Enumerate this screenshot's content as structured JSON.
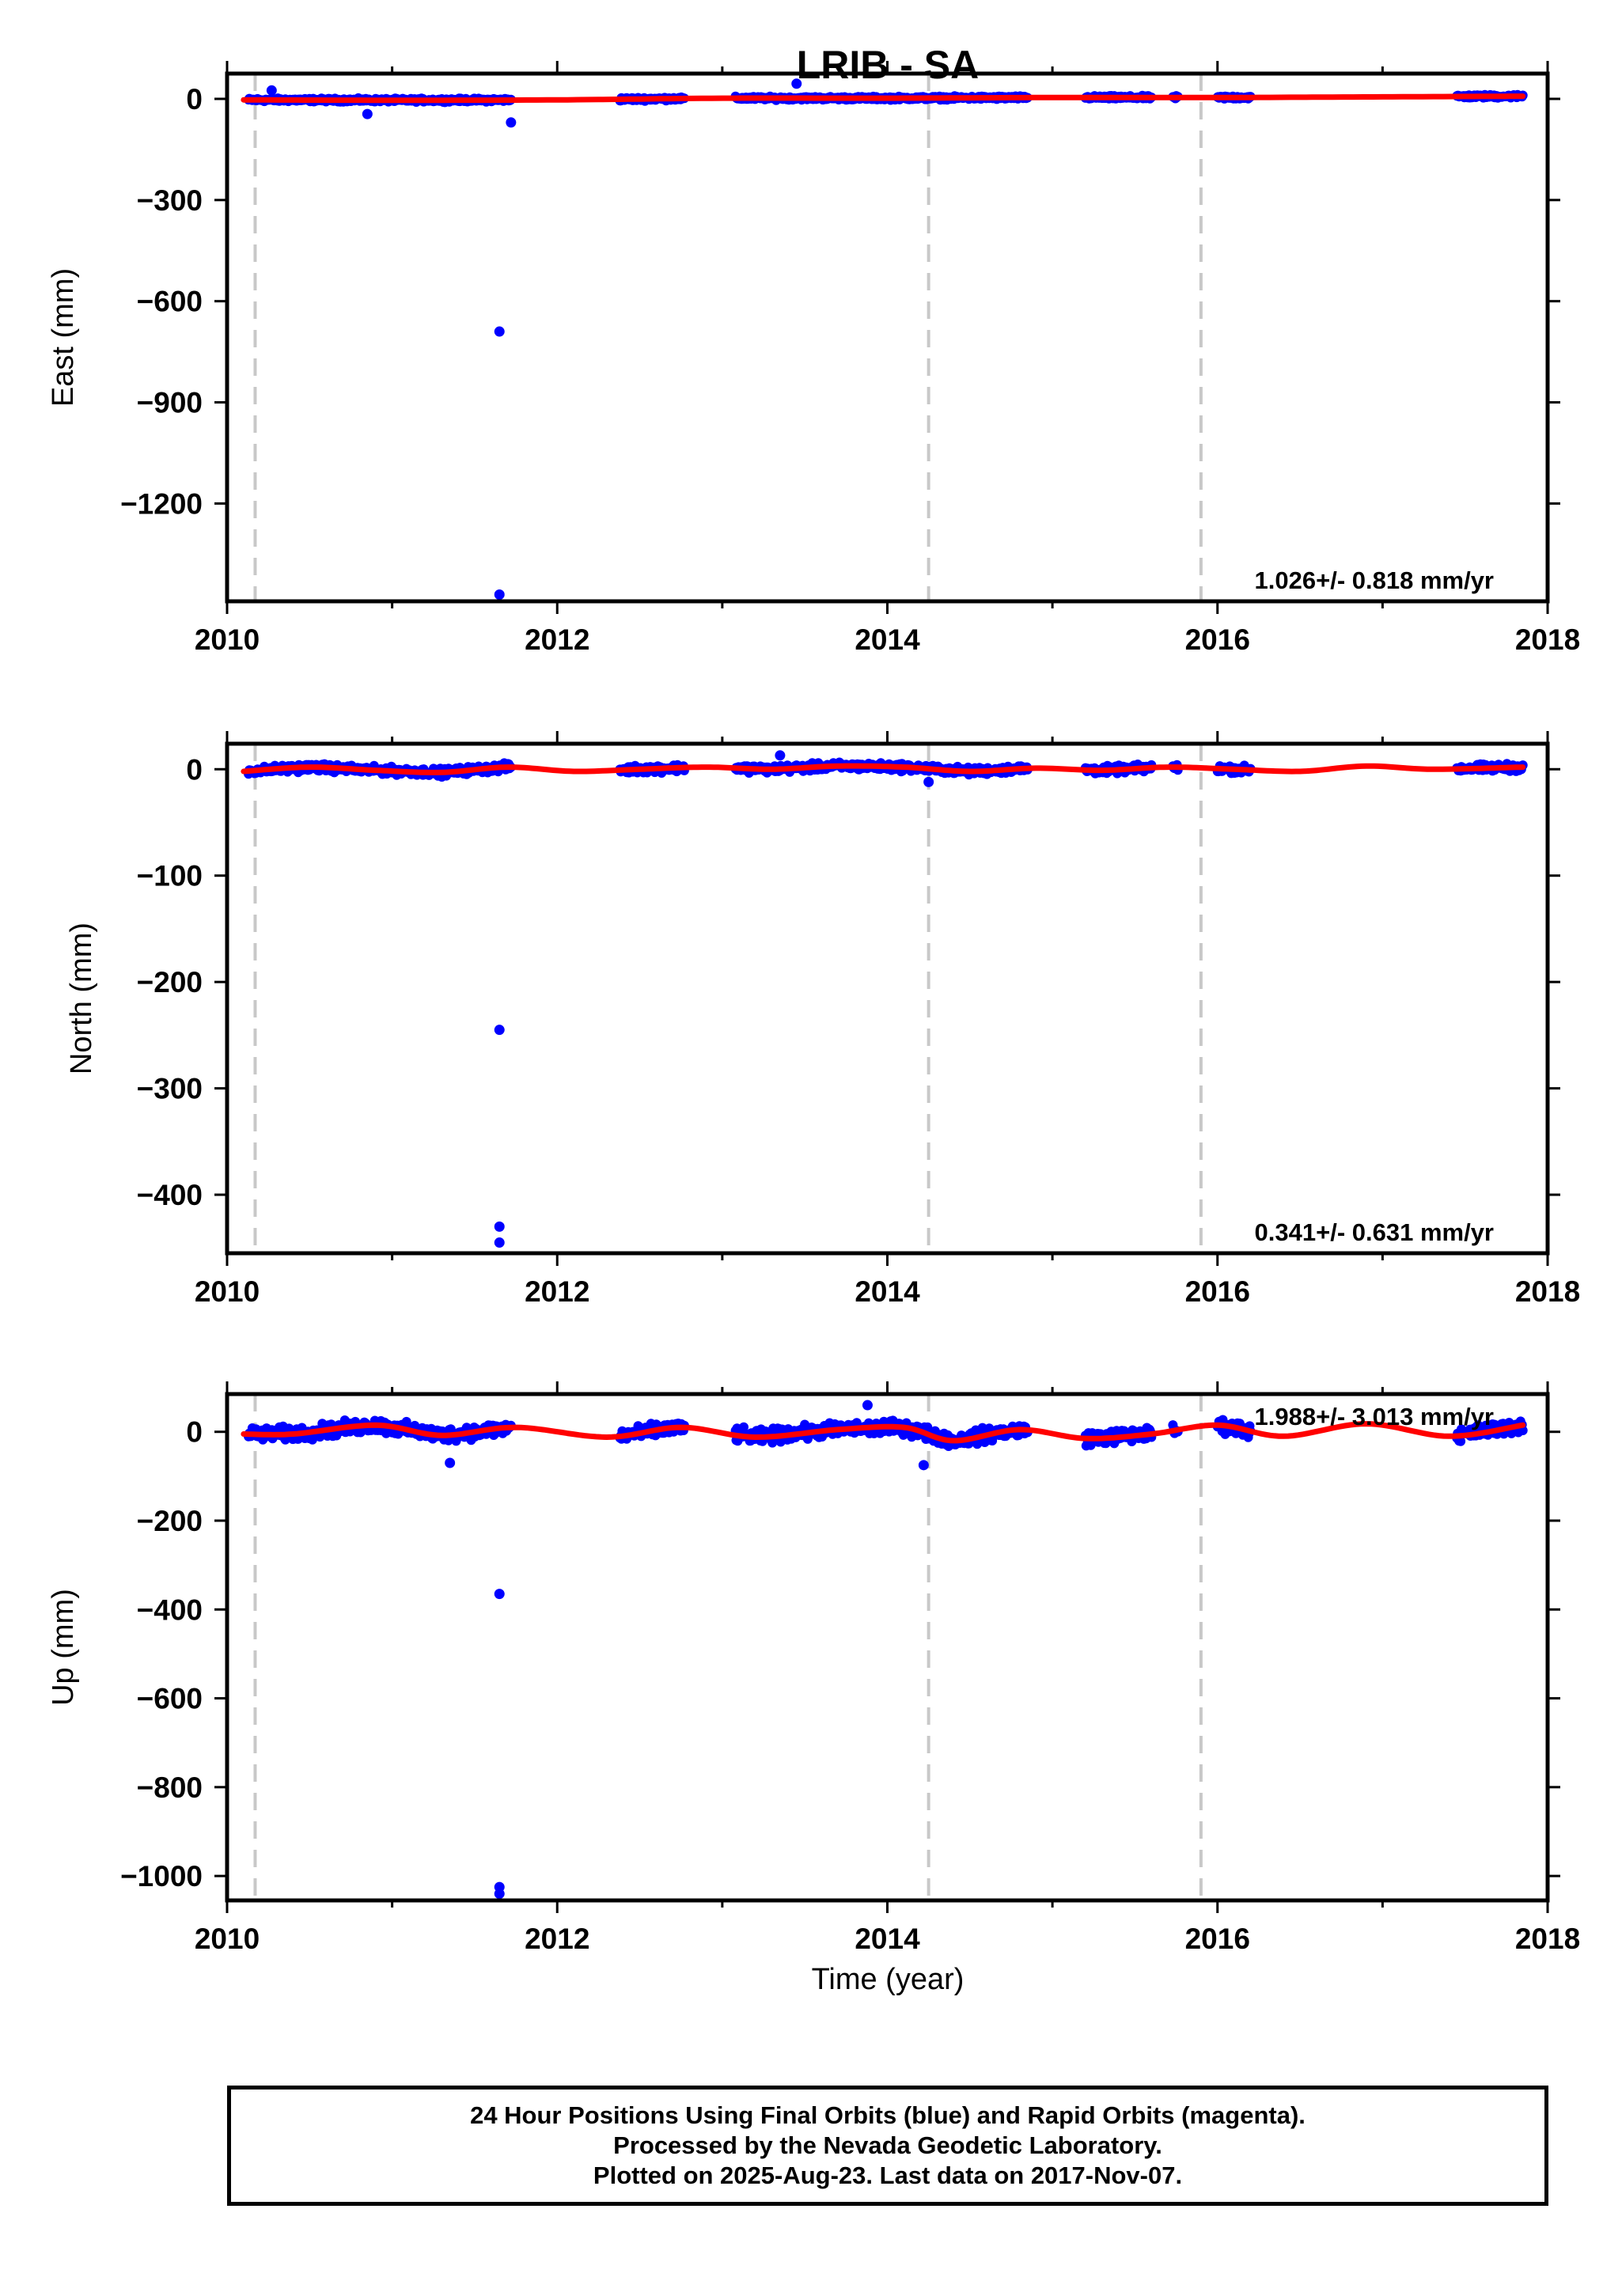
{
  "title": "LRIB - SA",
  "footer": {
    "line1": "24 Hour Positions Using Final Orbits (blue) and Rapid Orbits (magenta).",
    "line2": "Processed by the Nevada Geodetic Laboratory.",
    "line3": "Plotted on 2025-Aug-23. Last data on 2017-Nov-07."
  },
  "colors": {
    "points": "#0000ff",
    "fit": "#ff0000",
    "steps": "#c8c8c8",
    "frame": "#000000"
  },
  "chart_data": [
    {
      "type": "scatter",
      "panel": "east",
      "ylabel": "East (mm)",
      "xlabel": "",
      "xlim": [
        2010,
        2018
      ],
      "ylim": [
        -1490,
        75
      ],
      "xticks": [
        "2010",
        "2012",
        "2014",
        "2016",
        "2018"
      ],
      "yticks": [
        0,
        -300,
        -600,
        -900,
        -1200
      ],
      "ytick_labels": [
        "0",
        "−300",
        "−600",
        "−900",
        "−1200"
      ],
      "rate_text": "1.026+/- 0.818 mm/yr",
      "legend_position": "bottom-right",
      "grid": false,
      "step_lines": [
        2010.17,
        2014.25,
        2015.9
      ],
      "noise_amplitude": 7,
      "data_segments": [
        [
          2010.13,
          2011.72
        ],
        [
          2012.38,
          2012.77
        ],
        [
          2013.08,
          2014.85
        ],
        [
          2015.2,
          2015.6
        ],
        [
          2015.73,
          2015.76
        ],
        [
          2016.0,
          2016.2
        ],
        [
          2017.45,
          2017.85
        ]
      ],
      "outliers": [
        [
          2011.65,
          -690
        ],
        [
          2011.65,
          -1470
        ],
        [
          2011.72,
          -70
        ],
        [
          2013.45,
          45
        ],
        [
          2010.27,
          25
        ],
        [
          2010.85,
          -45
        ]
      ],
      "fit": [
        [
          2010.1,
          -3
        ],
        [
          2011.0,
          -4
        ],
        [
          2012.0,
          -3
        ],
        [
          2013.0,
          2
        ],
        [
          2014.0,
          2
        ],
        [
          2015.0,
          4
        ],
        [
          2016.0,
          4
        ],
        [
          2017.0,
          6
        ],
        [
          2017.85,
          8
        ]
      ]
    },
    {
      "type": "scatter",
      "panel": "north",
      "ylabel": "North (mm)",
      "xlabel": "",
      "xlim": [
        2010,
        2018
      ],
      "ylim": [
        -455,
        24
      ],
      "xticks": [
        "2010",
        "2012",
        "2014",
        "2016",
        "2018"
      ],
      "yticks": [
        0,
        -100,
        -200,
        -300,
        -400
      ],
      "ytick_labels": [
        "0",
        "−100",
        "−200",
        "−300",
        "−400"
      ],
      "rate_text": "0.341+/- 0.631 mm/yr",
      "legend_position": "bottom-right",
      "grid": false,
      "step_lines": [
        2010.17,
        2014.25,
        2015.9
      ],
      "noise_amplitude": 5,
      "data_segments": [
        [
          2010.13,
          2011.72
        ],
        [
          2012.38,
          2012.77
        ],
        [
          2013.08,
          2014.85
        ],
        [
          2015.2,
          2015.6
        ],
        [
          2015.73,
          2015.76
        ],
        [
          2016.0,
          2016.2
        ],
        [
          2017.45,
          2017.85
        ]
      ],
      "outliers": [
        [
          2011.65,
          -245
        ],
        [
          2011.65,
          -430
        ],
        [
          2011.65,
          -445
        ],
        [
          2013.35,
          13
        ],
        [
          2014.25,
          -12
        ]
      ],
      "fit": [
        [
          2010.1,
          -2
        ],
        [
          2010.5,
          2
        ],
        [
          2010.9,
          -1
        ],
        [
          2011.3,
          -3
        ],
        [
          2011.7,
          2
        ],
        [
          2012.1,
          -2
        ],
        [
          2012.5,
          0
        ],
        [
          2012.9,
          2
        ],
        [
          2013.3,
          0
        ],
        [
          2013.7,
          3
        ],
        [
          2014.1,
          2
        ],
        [
          2014.5,
          -2
        ],
        [
          2014.9,
          1
        ],
        [
          2015.3,
          -1
        ],
        [
          2015.7,
          2
        ],
        [
          2016.1,
          0
        ],
        [
          2016.5,
          -2
        ],
        [
          2016.9,
          3
        ],
        [
          2017.3,
          0
        ],
        [
          2017.85,
          2
        ]
      ]
    },
    {
      "type": "scatter",
      "panel": "up",
      "ylabel": "Up (mm)",
      "xlabel": "Time (year)",
      "xlim": [
        2010,
        2018
      ],
      "ylim": [
        -1055,
        85
      ],
      "xticks": [
        "2010",
        "2012",
        "2014",
        "2016",
        "2018"
      ],
      "yticks": [
        0,
        -200,
        -400,
        -600,
        -800,
        -1000
      ],
      "ytick_labels": [
        "0",
        "−200",
        "−400",
        "−600",
        "−800",
        "−1000"
      ],
      "rate_text": "1.988+/- 3.013 mm/yr",
      "legend_position": "top-right",
      "grid": false,
      "step_lines": [
        2010.17,
        2014.25,
        2015.9
      ],
      "noise_amplitude": 22,
      "data_segments": [
        [
          2010.13,
          2011.72
        ],
        [
          2012.38,
          2012.77
        ],
        [
          2013.08,
          2014.85
        ],
        [
          2015.2,
          2015.6
        ],
        [
          2015.73,
          2015.76
        ],
        [
          2016.0,
          2016.2
        ],
        [
          2017.45,
          2017.85
        ]
      ],
      "outliers": [
        [
          2011.65,
          -365
        ],
        [
          2011.65,
          -1025
        ],
        [
          2011.65,
          -1040
        ],
        [
          2013.88,
          60
        ],
        [
          2011.35,
          -70
        ],
        [
          2014.22,
          -75
        ]
      ],
      "fit": [
        [
          2010.1,
          -5
        ],
        [
          2010.4,
          -5
        ],
        [
          2010.9,
          15
        ],
        [
          2011.3,
          -8
        ],
        [
          2011.75,
          10
        ],
        [
          2012.3,
          -12
        ],
        [
          2012.75,
          10
        ],
        [
          2013.2,
          -12
        ],
        [
          2013.7,
          5
        ],
        [
          2014.1,
          10
        ],
        [
          2014.4,
          -20
        ],
        [
          2014.8,
          5
        ],
        [
          2015.2,
          -15
        ],
        [
          2015.6,
          -5
        ],
        [
          2016.0,
          15
        ],
        [
          2016.4,
          -10
        ],
        [
          2016.9,
          18
        ],
        [
          2017.4,
          -10
        ],
        [
          2017.85,
          15
        ]
      ]
    }
  ]
}
